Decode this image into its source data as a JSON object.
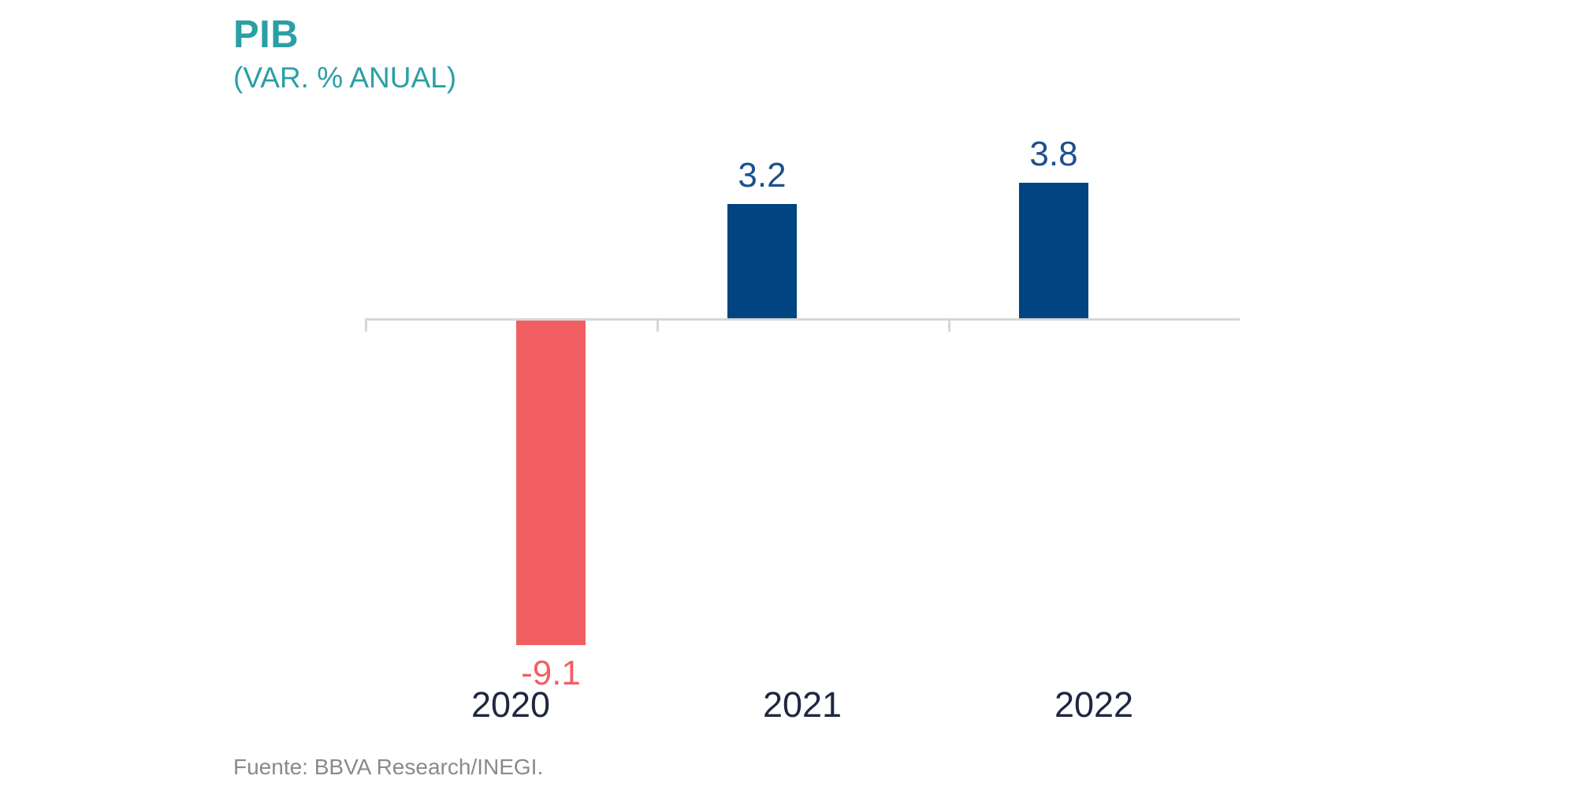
{
  "header": {
    "title": "PIB",
    "subtitle": "(VAR. % ANUAL)"
  },
  "footer": {
    "source": "Fuente: BBVA Research/INEGI."
  },
  "colors": {
    "title_teal": "#2aa0a5",
    "bar_positive": "#004481",
    "bar_negative": "#f15f63",
    "value_label_positive": "#1d5091",
    "value_label_negative": "#f15f63",
    "year_label": "#1f2740",
    "axis_gray": "#d6d6d6",
    "source_gray": "#8a8a8a",
    "background": "#ffffff"
  },
  "chart_data": {
    "type": "bar",
    "title": "PIB",
    "subtitle": "(VAR. % ANUAL)",
    "categories": [
      "2020",
      "2021",
      "2022"
    ],
    "values": [
      -9.1,
      3.2,
      3.8
    ],
    "value_labels": [
      "-9.1",
      "3.2",
      "3.8"
    ],
    "bar_colors": [
      "#f15f63",
      "#004481",
      "#004481"
    ],
    "value_label_colors": [
      "#f15f63",
      "#1d5091",
      "#1d5091"
    ],
    "xlabel": "",
    "ylabel": "",
    "ylim": [
      -10,
      5
    ],
    "grid": false,
    "legend": "none",
    "baseline": 0,
    "source": "Fuente: BBVA Research/INEGI."
  }
}
